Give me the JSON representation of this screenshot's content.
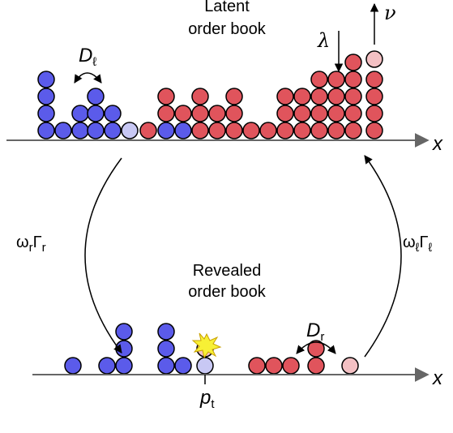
{
  "latent": {
    "title_lines": [
      "Latent",
      "order book"
    ],
    "diffusion": [
      {
        "text": "D"
      },
      {
        "text": "ℓ",
        "sub": true
      }
    ],
    "deposition": "λ",
    "cancellation": "ν",
    "axis": "x"
  },
  "revealed": {
    "title_lines": [
      "Revealed",
      "order book"
    ],
    "diffusion": [
      {
        "text": "D"
      },
      {
        "text": "r",
        "sub": true
      }
    ],
    "axis": "x",
    "price": [
      {
        "text": "p"
      },
      {
        "text": "t",
        "sub": true
      }
    ]
  },
  "transitions": {
    "reveal": [
      {
        "text": "ω"
      },
      {
        "text": "r",
        "sub": true
      },
      {
        "text": "Γ"
      },
      {
        "text": "r",
        "sub": true
      }
    ],
    "hide": [
      {
        "text": "ω"
      },
      {
        "text": "ℓ",
        "sub": true
      },
      {
        "text": "Γ"
      },
      {
        "text": "ℓ",
        "sub": true
      }
    ]
  }
}
